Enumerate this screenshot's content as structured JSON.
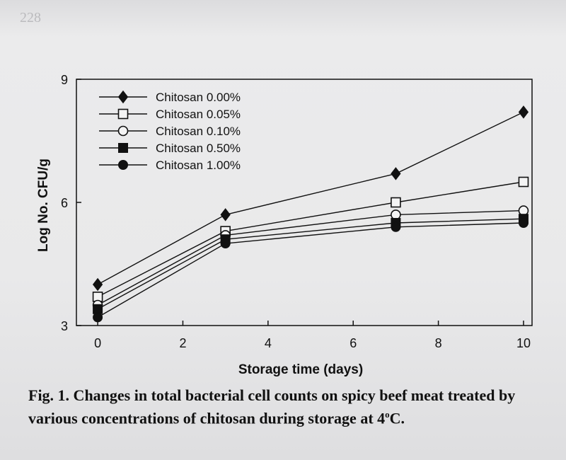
{
  "page_number": "228",
  "caption": {
    "text": "Fig. 1. Changes in total bacterial cell counts on spicy beef meat treated by various concentrations of chitosan during storage at 4",
    "superscript": "o",
    "suffix": "C."
  },
  "chart_data": {
    "type": "line",
    "title": "",
    "xlabel": "Storage time (days)",
    "ylabel": "Log No. CFU/g",
    "xlim": [
      -0.5,
      10.2
    ],
    "ylim": [
      3,
      9
    ],
    "x_ticks": [
      0,
      2,
      4,
      6,
      8,
      10
    ],
    "y_ticks": [
      3,
      6,
      9
    ],
    "grid": false,
    "legend_position": "top-left",
    "x": [
      0,
      3,
      7,
      10
    ],
    "series": [
      {
        "name": "Chitosan 0.00%",
        "marker": "diamond",
        "values": [
          4.0,
          5.7,
          6.7,
          8.2
        ]
      },
      {
        "name": "Chitosan 0.05%",
        "marker": "square-open",
        "values": [
          3.7,
          5.3,
          6.0,
          6.5
        ]
      },
      {
        "name": "Chitosan 0.10%",
        "marker": "circle-open",
        "values": [
          3.5,
          5.2,
          5.7,
          5.8
        ]
      },
      {
        "name": "Chitosan 0.50%",
        "marker": "square-filled",
        "values": [
          3.4,
          5.1,
          5.5,
          5.6
        ]
      },
      {
        "name": "Chitosan 1.00%",
        "marker": "circle-filled",
        "values": [
          3.2,
          5.0,
          5.4,
          5.5
        ]
      }
    ]
  }
}
